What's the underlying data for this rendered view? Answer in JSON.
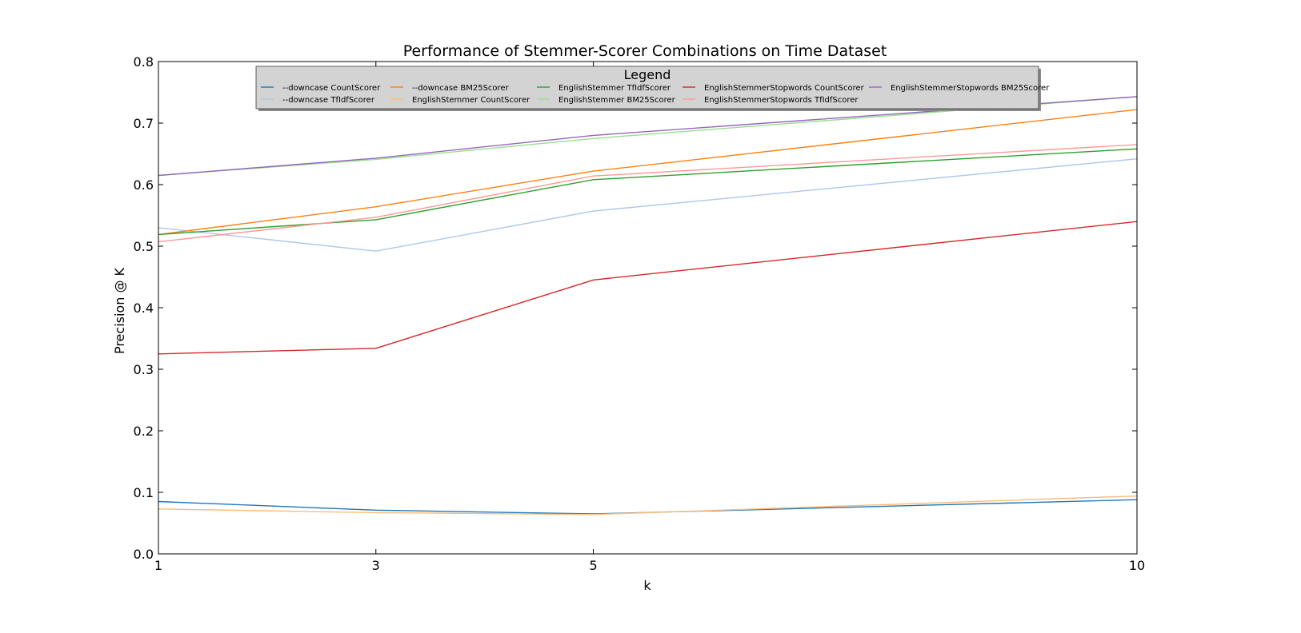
{
  "chart_data": {
    "type": "line",
    "title": "Performance of Stemmer-Scorer Combinations on Time Dataset",
    "xlabel": "k",
    "ylabel": "Precision @ K",
    "x": [
      1,
      3,
      5,
      10
    ],
    "x_ticks": [
      "1",
      "3",
      "5",
      "10"
    ],
    "xlim": [
      1,
      10
    ],
    "ylim": [
      0.0,
      0.8
    ],
    "y_ticks": [
      "0.0",
      "0.1",
      "0.2",
      "0.3",
      "0.4",
      "0.5",
      "0.6",
      "0.7",
      "0.8"
    ],
    "grid": false,
    "legend": {
      "title": "Legend",
      "placement": "top-center"
    },
    "series": [
      {
        "name": "--downcase CountScorer",
        "color": "#1f77b4",
        "values": [
          0.085,
          0.071,
          0.065,
          0.088
        ]
      },
      {
        "name": "--downcase TfIdfScorer",
        "color": "#aec7e8",
        "values": [
          0.53,
          0.492,
          0.557,
          0.642
        ]
      },
      {
        "name": "--downcase BM25Scorer",
        "color": "#ff7f0e",
        "values": [
          0.519,
          0.564,
          0.622,
          0.722
        ]
      },
      {
        "name": "EnglishStemmer CountScorer",
        "color": "#ffbb78",
        "values": [
          0.073,
          0.067,
          0.064,
          0.094
        ]
      },
      {
        "name": "EnglishStemmer TfIdfScorer",
        "color": "#2ca02c",
        "values": [
          0.519,
          0.543,
          0.608,
          0.658
        ]
      },
      {
        "name": "EnglishStemmer BM25Scorer",
        "color": "#98df8a",
        "values": [
          0.615,
          0.641,
          0.675,
          0.743
        ]
      },
      {
        "name": "EnglishStemmerStopwords CountScorer",
        "color": "#d62728",
        "values": [
          0.325,
          0.334,
          0.445,
          0.54
        ]
      },
      {
        "name": "EnglishStemmerStopwords TfIdfScorer",
        "color": "#ff9896",
        "values": [
          0.507,
          0.547,
          0.614,
          0.665
        ]
      },
      {
        "name": "EnglishStemmerStopwords BM25Scorer",
        "color": "#9467bd",
        "values": [
          0.615,
          0.643,
          0.68,
          0.743
        ]
      }
    ]
  }
}
